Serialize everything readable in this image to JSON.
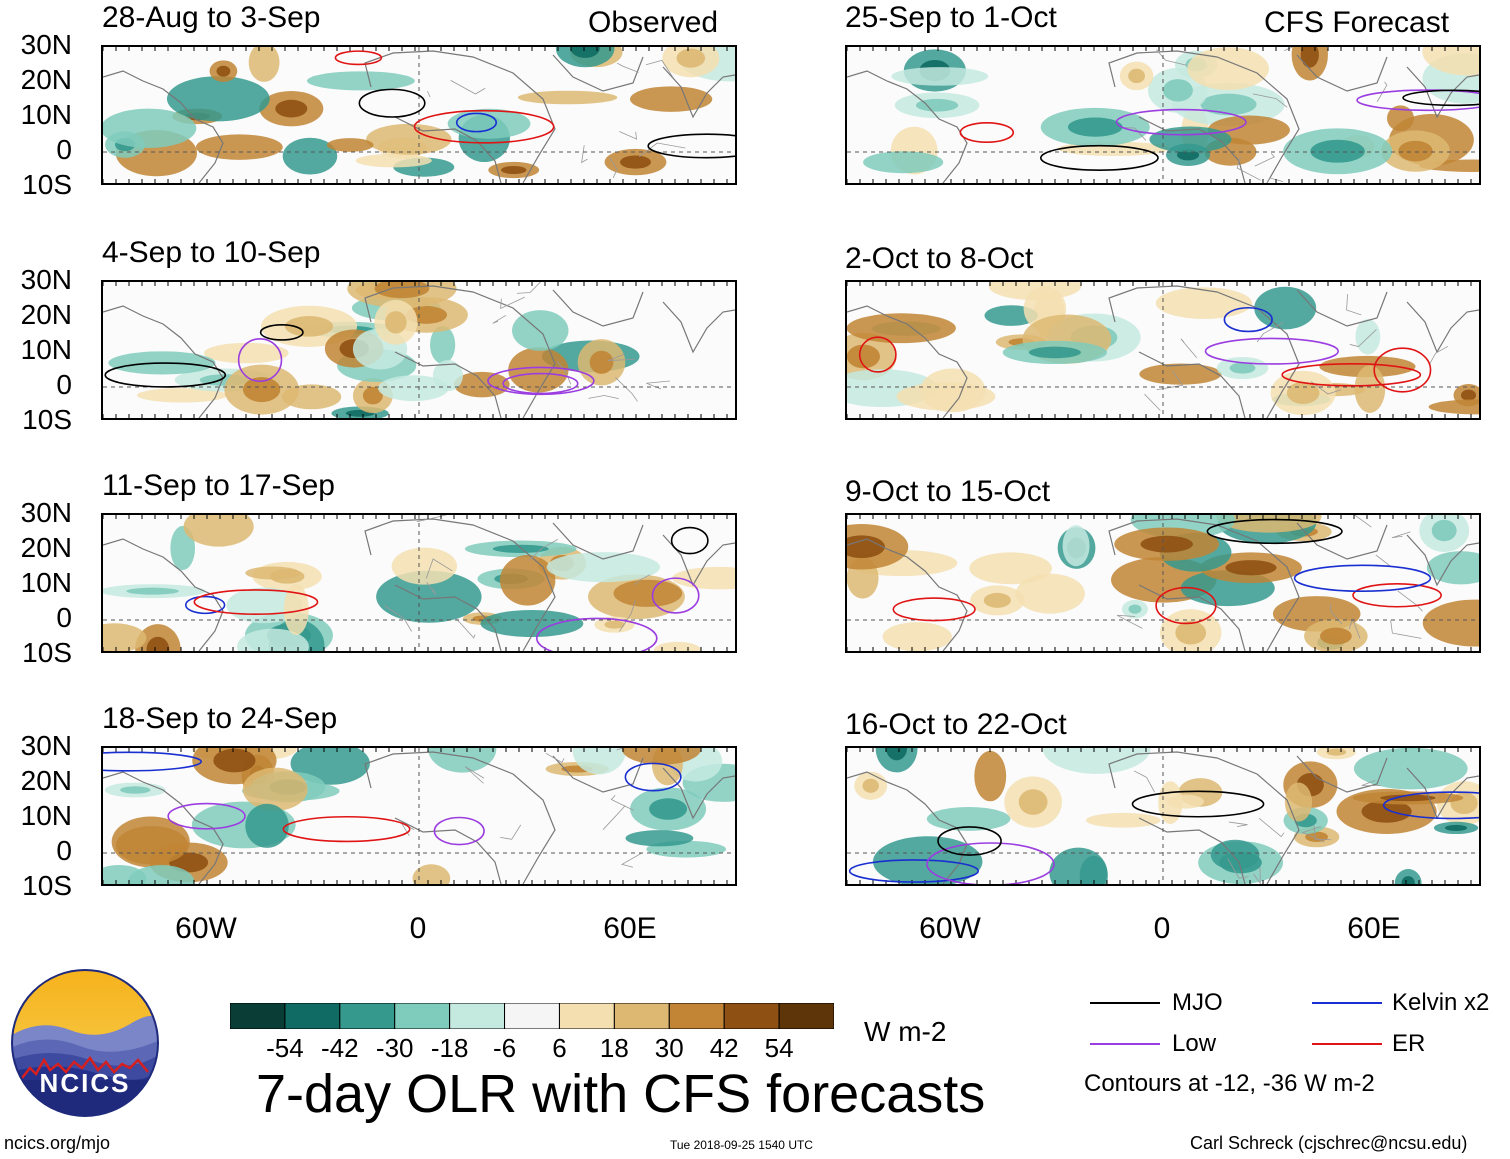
{
  "headers": {
    "observed": "Observed",
    "forecast": "CFS Forecast"
  },
  "panels": {
    "left": [
      {
        "title": "28-Aug to 3-Sep"
      },
      {
        "title": "4-Sep to 10-Sep"
      },
      {
        "title": "11-Sep to 17-Sep"
      },
      {
        "title": "18-Sep to 24-Sep"
      }
    ],
    "right": [
      {
        "title": "25-Sep to 1-Oct"
      },
      {
        "title": "2-Oct to 8-Oct"
      },
      {
        "title": "9-Oct to 15-Oct"
      },
      {
        "title": "16-Oct to 22-Oct"
      }
    ]
  },
  "axes": {
    "lat": [
      "30N",
      "20N",
      "10N",
      "0",
      "10S"
    ],
    "lon": [
      "60W",
      "0",
      "60E"
    ]
  },
  "colorbar": {
    "ticks": [
      "-54",
      "-42",
      "-30",
      "-18",
      "-6",
      "6",
      "18",
      "30",
      "42",
      "54"
    ],
    "units": "W m-2",
    "colors": [
      "#0b3d37",
      "#0f6b63",
      "#35998e",
      "#7fcbbc",
      "#c4e9df",
      "#f5f5f5",
      "#f3dfb0",
      "#ddb872",
      "#c18535",
      "#8f5113",
      "#5e3508"
    ]
  },
  "title": "7-day OLR with CFS forecasts",
  "logo": {
    "text": "NCICS"
  },
  "legend": {
    "items": [
      {
        "label": "MJO",
        "color": "#000000"
      },
      {
        "label": "Kelvin x2",
        "color": "#1a2fd1"
      },
      {
        "label": "Low",
        "color": "#9b3de0"
      },
      {
        "label": "ER",
        "color": "#e01414"
      }
    ],
    "note": "Contours at -12, -36 W m-2"
  },
  "footer": {
    "url": "ncics.org/mjo",
    "timestamp": "Tue 2018-09-25 1540 UTC",
    "credit": "Carl Schreck (cjschrec@ncsu.edu)"
  }
}
